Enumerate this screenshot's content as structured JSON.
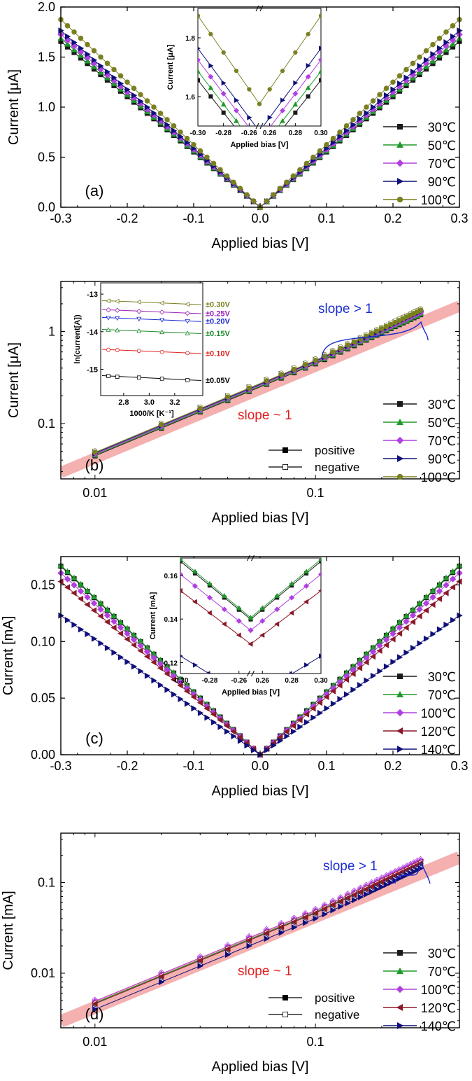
{
  "colors": {
    "30": "#1a1a1a",
    "50": "#1f9a2a",
    "70": "#1f9a2a",
    "100": "#b040e0",
    "120": "#8a1a2a",
    "140": "#10107a",
    "v30": "#7a8020",
    "v25": "#9a22b8",
    "v20": "#1a2ad0",
    "v15": "#1a8a2a",
    "v10": "#e02020",
    "v05": "#000000",
    "band": "#f4a8a8",
    "slopeRed": "#e02020",
    "slopeBlue": "#1a2ad0"
  },
  "chart_data": [
    {
      "id": "a",
      "type": "line",
      "panel_label": "(a)",
      "xlabel": "Applied bias [V]",
      "ylabel": "Current [μA]",
      "xlim": [
        -0.3,
        0.3
      ],
      "ylim": [
        0.0,
        2.0
      ],
      "xticks": [
        "-0.3",
        "-0.2",
        "-0.1",
        "0.0",
        "0.1",
        "0.2",
        "0.3"
      ],
      "yticks": [
        "0.0",
        "0.5",
        "1.0",
        "1.5",
        "2.0"
      ],
      "x_range": [
        -0.3,
        0.3
      ],
      "series": [
        {
          "name": "30℃",
          "marker": "square",
          "color_key": "30",
          "slope_uA_per_V": 5.52
        },
        {
          "name": "50℃",
          "marker": "triangle-up",
          "color_key": "50",
          "slope_uA_per_V": 5.62
        },
        {
          "name": "70℃",
          "marker": "diamond",
          "color_key": "100",
          "slope_uA_per_V": 5.75
        },
        {
          "name": "90℃",
          "marker": "triangle-right",
          "color_key": "140",
          "slope_uA_per_V": 5.88
        },
        {
          "name": "100℃",
          "marker": "circle",
          "color_key": "v30",
          "slope_uA_per_V": 6.25
        }
      ],
      "inset": {
        "xlabel": "Applied bias [V]",
        "ylabel": "Current [μA]",
        "xticks_left": [
          "-0.30",
          "-0.28",
          "-0.26"
        ],
        "xticks_right": [
          "0.26",
          "0.28",
          "0.30"
        ],
        "yticks": [
          "1.6",
          "1.8"
        ],
        "ylim": [
          1.5,
          1.9
        ]
      }
    },
    {
      "id": "b",
      "type": "scatter",
      "panel_label": "(b)",
      "xscale": "log",
      "yscale": "log",
      "xlabel": "Applied bias [V]",
      "ylabel": "Current [μA]",
      "xlim": [
        0.007,
        0.45
      ],
      "ylim": [
        0.025,
        3.5
      ],
      "xticks": [
        "0.01",
        "0.1"
      ],
      "yticks": [
        "0.1",
        "1"
      ],
      "x_values": [
        0.01,
        0.02,
        0.03,
        0.04,
        0.05,
        0.06,
        0.07,
        0.08,
        0.09,
        0.1,
        0.11,
        0.12,
        0.13,
        0.14,
        0.15,
        0.16,
        0.17,
        0.18,
        0.19,
        0.2,
        0.21,
        0.22,
        0.23,
        0.24,
        0.25,
        0.26,
        0.27,
        0.28,
        0.29,
        0.3
      ],
      "series": [
        {
          "name": "30℃",
          "marker": "square",
          "color_key": "30"
        },
        {
          "name": "50℃",
          "marker": "triangle-up",
          "color_key": "50"
        },
        {
          "name": "70℃",
          "marker": "diamond",
          "color_key": "100"
        },
        {
          "name": "90℃",
          "marker": "triangle-right",
          "color_key": "140"
        },
        {
          "name": "100℃",
          "marker": "circle",
          "color_key": "v30"
        }
      ],
      "polarity_legend": [
        "positive",
        "negative"
      ],
      "annotations": {
        "slope_low": "slope ~ 1",
        "slope_high": "slope > 1"
      },
      "inset": {
        "xlabel": "1000/K [K⁻¹]",
        "ylabel": "ln(current[A])",
        "xticks": [
          "2.8",
          "3.0",
          "3.2"
        ],
        "yticks": [
          "-13",
          "-14",
          "-15"
        ],
        "xlim": [
          2.62,
          3.42
        ],
        "ylim": [
          -15.7,
          -12.7
        ],
        "x_values": [
          2.68,
          2.75,
          2.92,
          3.1,
          3.3
        ],
        "lines": [
          {
            "label": "±0.30V",
            "color_key": "v30",
            "marker": "left-triangle",
            "y": [
              -13.18,
              -13.19,
              -13.21,
              -13.24,
              -13.27
            ]
          },
          {
            "label": "±0.25V",
            "color_key": "v25",
            "marker": "diamond",
            "y": [
              -13.42,
              -13.43,
              -13.46,
              -13.48,
              -13.51
            ]
          },
          {
            "label": "±0.20V",
            "color_key": "v20",
            "marker": "triangle-down",
            "y": [
              -13.63,
              -13.64,
              -13.66,
              -13.69,
              -13.72
            ]
          },
          {
            "label": "±0.15V",
            "color_key": "v15",
            "marker": "triangle-up",
            "y": [
              -13.95,
              -13.96,
              -13.98,
              -14.01,
              -14.04
            ]
          },
          {
            "label": "±0.10V",
            "color_key": "v10",
            "marker": "circle",
            "y": [
              -14.48,
              -14.49,
              -14.51,
              -14.54,
              -14.57
            ]
          },
          {
            "label": "±0.05V",
            "color_key": "v05",
            "marker": "square",
            "y": [
              -15.18,
              -15.2,
              -15.22,
              -15.25,
              -15.29
            ]
          }
        ]
      }
    },
    {
      "id": "c",
      "type": "line",
      "panel_label": "(c)",
      "xlabel": "Applied bias [V]",
      "ylabel": "Current [mA]",
      "xlim": [
        -0.3,
        0.3
      ],
      "ylim": [
        0.0,
        0.175
      ],
      "xticks": [
        "-0.3",
        "-0.2",
        "-0.1",
        "0.0",
        "0.1",
        "0.2",
        "0.3"
      ],
      "yticks": [
        "0.00",
        "0.05",
        "0.10",
        "0.15"
      ],
      "x_range": [
        -0.3,
        0.3
      ],
      "series": [
        {
          "name": "30℃",
          "marker": "square",
          "color_key": "30",
          "slope_mA_per_V": 0.555
        },
        {
          "name": "70℃",
          "marker": "triangle-up",
          "color_key": "50",
          "slope_mA_per_V": 0.558
        },
        {
          "name": "100℃",
          "marker": "diamond",
          "color_key": "100",
          "slope_mA_per_V": 0.535
        },
        {
          "name": "120℃",
          "marker": "triangle-left",
          "color_key": "120",
          "slope_mA_per_V": 0.51
        },
        {
          "name": "140℃",
          "marker": "triangle-right",
          "color_key": "140",
          "slope_mA_per_V": 0.41
        }
      ],
      "inset": {
        "xlabel": "Applied bias [V]",
        "ylabel": "Current [mA]",
        "xticks_left": [
          "-0.30",
          "-0.28",
          "-0.26"
        ],
        "xticks_right": [
          "0.26",
          "0.28",
          "0.30"
        ],
        "yticks": [
          "0.12",
          "0.14",
          "0.16"
        ],
        "ylim": [
          0.115,
          0.168
        ]
      }
    },
    {
      "id": "d",
      "type": "scatter",
      "panel_label": "(d)",
      "xscale": "log",
      "yscale": "log",
      "xlabel": "Applied bias [V]",
      "ylabel": "Current [mA]",
      "xlim": [
        0.007,
        0.45
      ],
      "ylim": [
        0.0025,
        0.35
      ],
      "xticks": [
        "0.01",
        "0.1"
      ],
      "yticks": [
        "0.01",
        "0.1"
      ],
      "x_values": [
        0.01,
        0.02,
        0.03,
        0.04,
        0.05,
        0.06,
        0.07,
        0.08,
        0.09,
        0.1,
        0.11,
        0.12,
        0.13,
        0.14,
        0.15,
        0.16,
        0.17,
        0.18,
        0.19,
        0.2,
        0.21,
        0.22,
        0.23,
        0.24,
        0.25,
        0.26,
        0.27,
        0.28,
        0.29,
        0.3
      ],
      "series": [
        {
          "name": "30℃",
          "marker": "square",
          "color_key": "30"
        },
        {
          "name": "70℃",
          "marker": "triangle-up",
          "color_key": "50"
        },
        {
          "name": "100℃",
          "marker": "diamond",
          "color_key": "100"
        },
        {
          "name": "120℃",
          "marker": "triangle-left",
          "color_key": "120"
        },
        {
          "name": "140℃",
          "marker": "triangle-right",
          "color_key": "140"
        }
      ],
      "polarity_legend": [
        "positive",
        "negative"
      ],
      "annotations": {
        "slope_low": "slope ~ 1",
        "slope_high": "slope > 1"
      }
    }
  ]
}
